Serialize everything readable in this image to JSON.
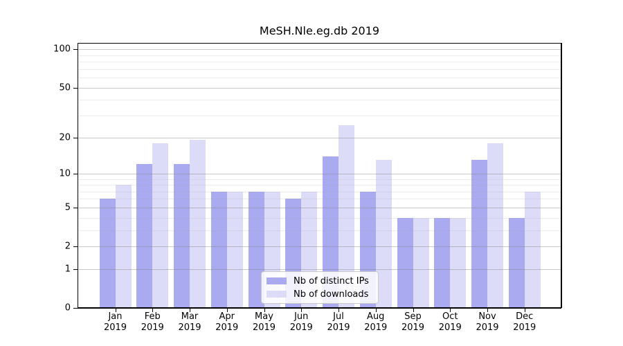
{
  "title": "MeSH.Nle.eg.db 2019",
  "chart_data": {
    "type": "bar",
    "title": "MeSH.Nle.eg.db 2019",
    "categories": [
      "Jan",
      "Feb",
      "Mar",
      "Apr",
      "May",
      "Jun",
      "Jul",
      "Aug",
      "Sep",
      "Oct",
      "Nov",
      "Dec"
    ],
    "category_year": "2019",
    "series": [
      {
        "name": "Nb of distinct IPs",
        "color": "#aaaaf1",
        "values": [
          6,
          12,
          12,
          7,
          7,
          6,
          14,
          7,
          4,
          4,
          13,
          4
        ]
      },
      {
        "name": "Nb of downloads",
        "color": "#dcdcf8",
        "values": [
          8,
          18,
          19,
          7,
          7,
          7,
          25,
          13,
          4,
          4,
          18,
          7
        ]
      }
    ],
    "y_scale": "log1p",
    "y_ticks": [
      0,
      1,
      2,
      5,
      10,
      20,
      50,
      100
    ],
    "y_minor_gridlines": [
      3,
      4,
      6,
      7,
      8,
      9,
      30,
      40,
      60,
      70,
      80,
      90
    ],
    "ylim": [
      0,
      113
    ],
    "xlabel": "",
    "ylabel": "",
    "grid": true,
    "legend_position": "lower center"
  },
  "colors": {
    "bar_ips": "#aaaaf1",
    "bar_downloads": "#dcdcf8",
    "grid_major": "#c3c3c3",
    "grid_minor": "#e7e7e7",
    "axis": "#000000",
    "legend_border": "#c9c9c9"
  }
}
